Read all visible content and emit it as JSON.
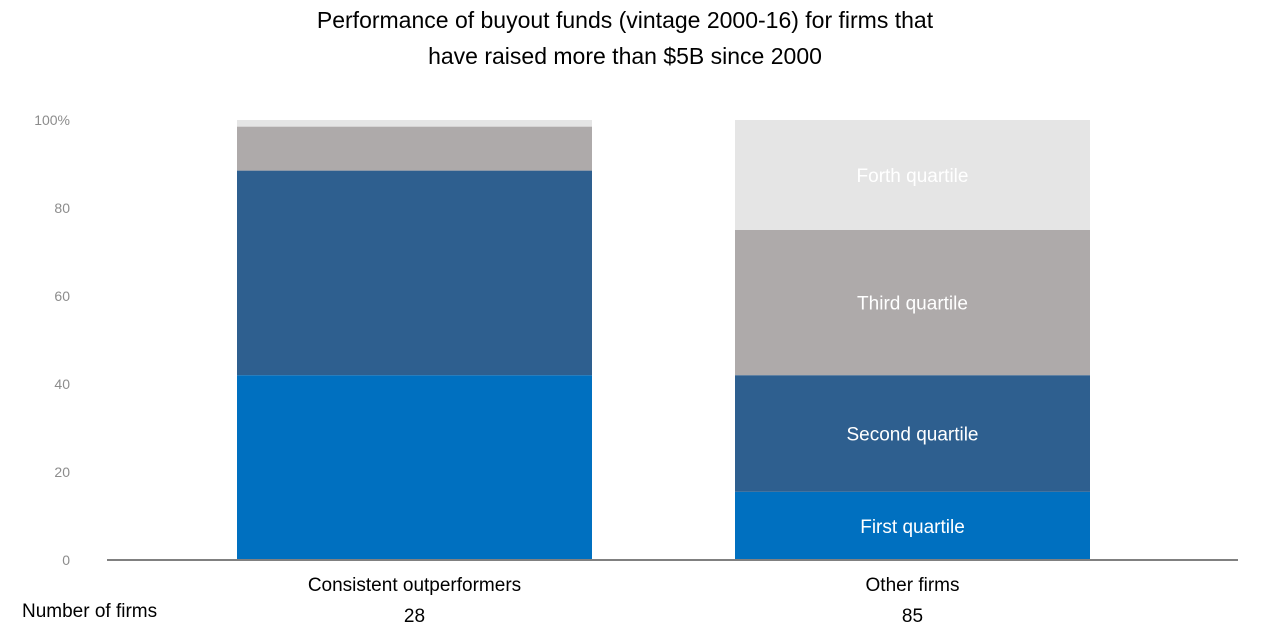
{
  "chart_data": {
    "type": "bar",
    "stacked": true,
    "title_lines": [
      "Performance of buyout funds (vintage 2000-16) for firms that",
      "have raised more than $5B since 2000"
    ],
    "ylim": [
      0,
      100
    ],
    "yticks": [
      "0",
      "20",
      "40",
      "60",
      "80",
      "100%"
    ],
    "ytick_values": [
      0,
      20,
      40,
      60,
      80,
      100
    ],
    "categories": [
      "Consistent outperformers",
      "Other firms"
    ],
    "number_of_firms_label": "Number of firms",
    "number_of_firms": [
      "28",
      "85"
    ],
    "series": [
      {
        "name": "First quartile",
        "color": "#0070c0",
        "values": [
          42,
          15.5
        ]
      },
      {
        "name": "Second quartile",
        "color": "#2e5f8f",
        "values": [
          46.5,
          26.5
        ]
      },
      {
        "name": "Third quartile",
        "color": "#aeaaaa",
        "values": [
          10,
          33
        ]
      },
      {
        "name": "Forth quartile",
        "color": "#e5e5e5",
        "values": [
          1.5,
          25
        ]
      }
    ],
    "segment_labels_on_category": "Other firms",
    "grid": false,
    "legend": "none"
  }
}
